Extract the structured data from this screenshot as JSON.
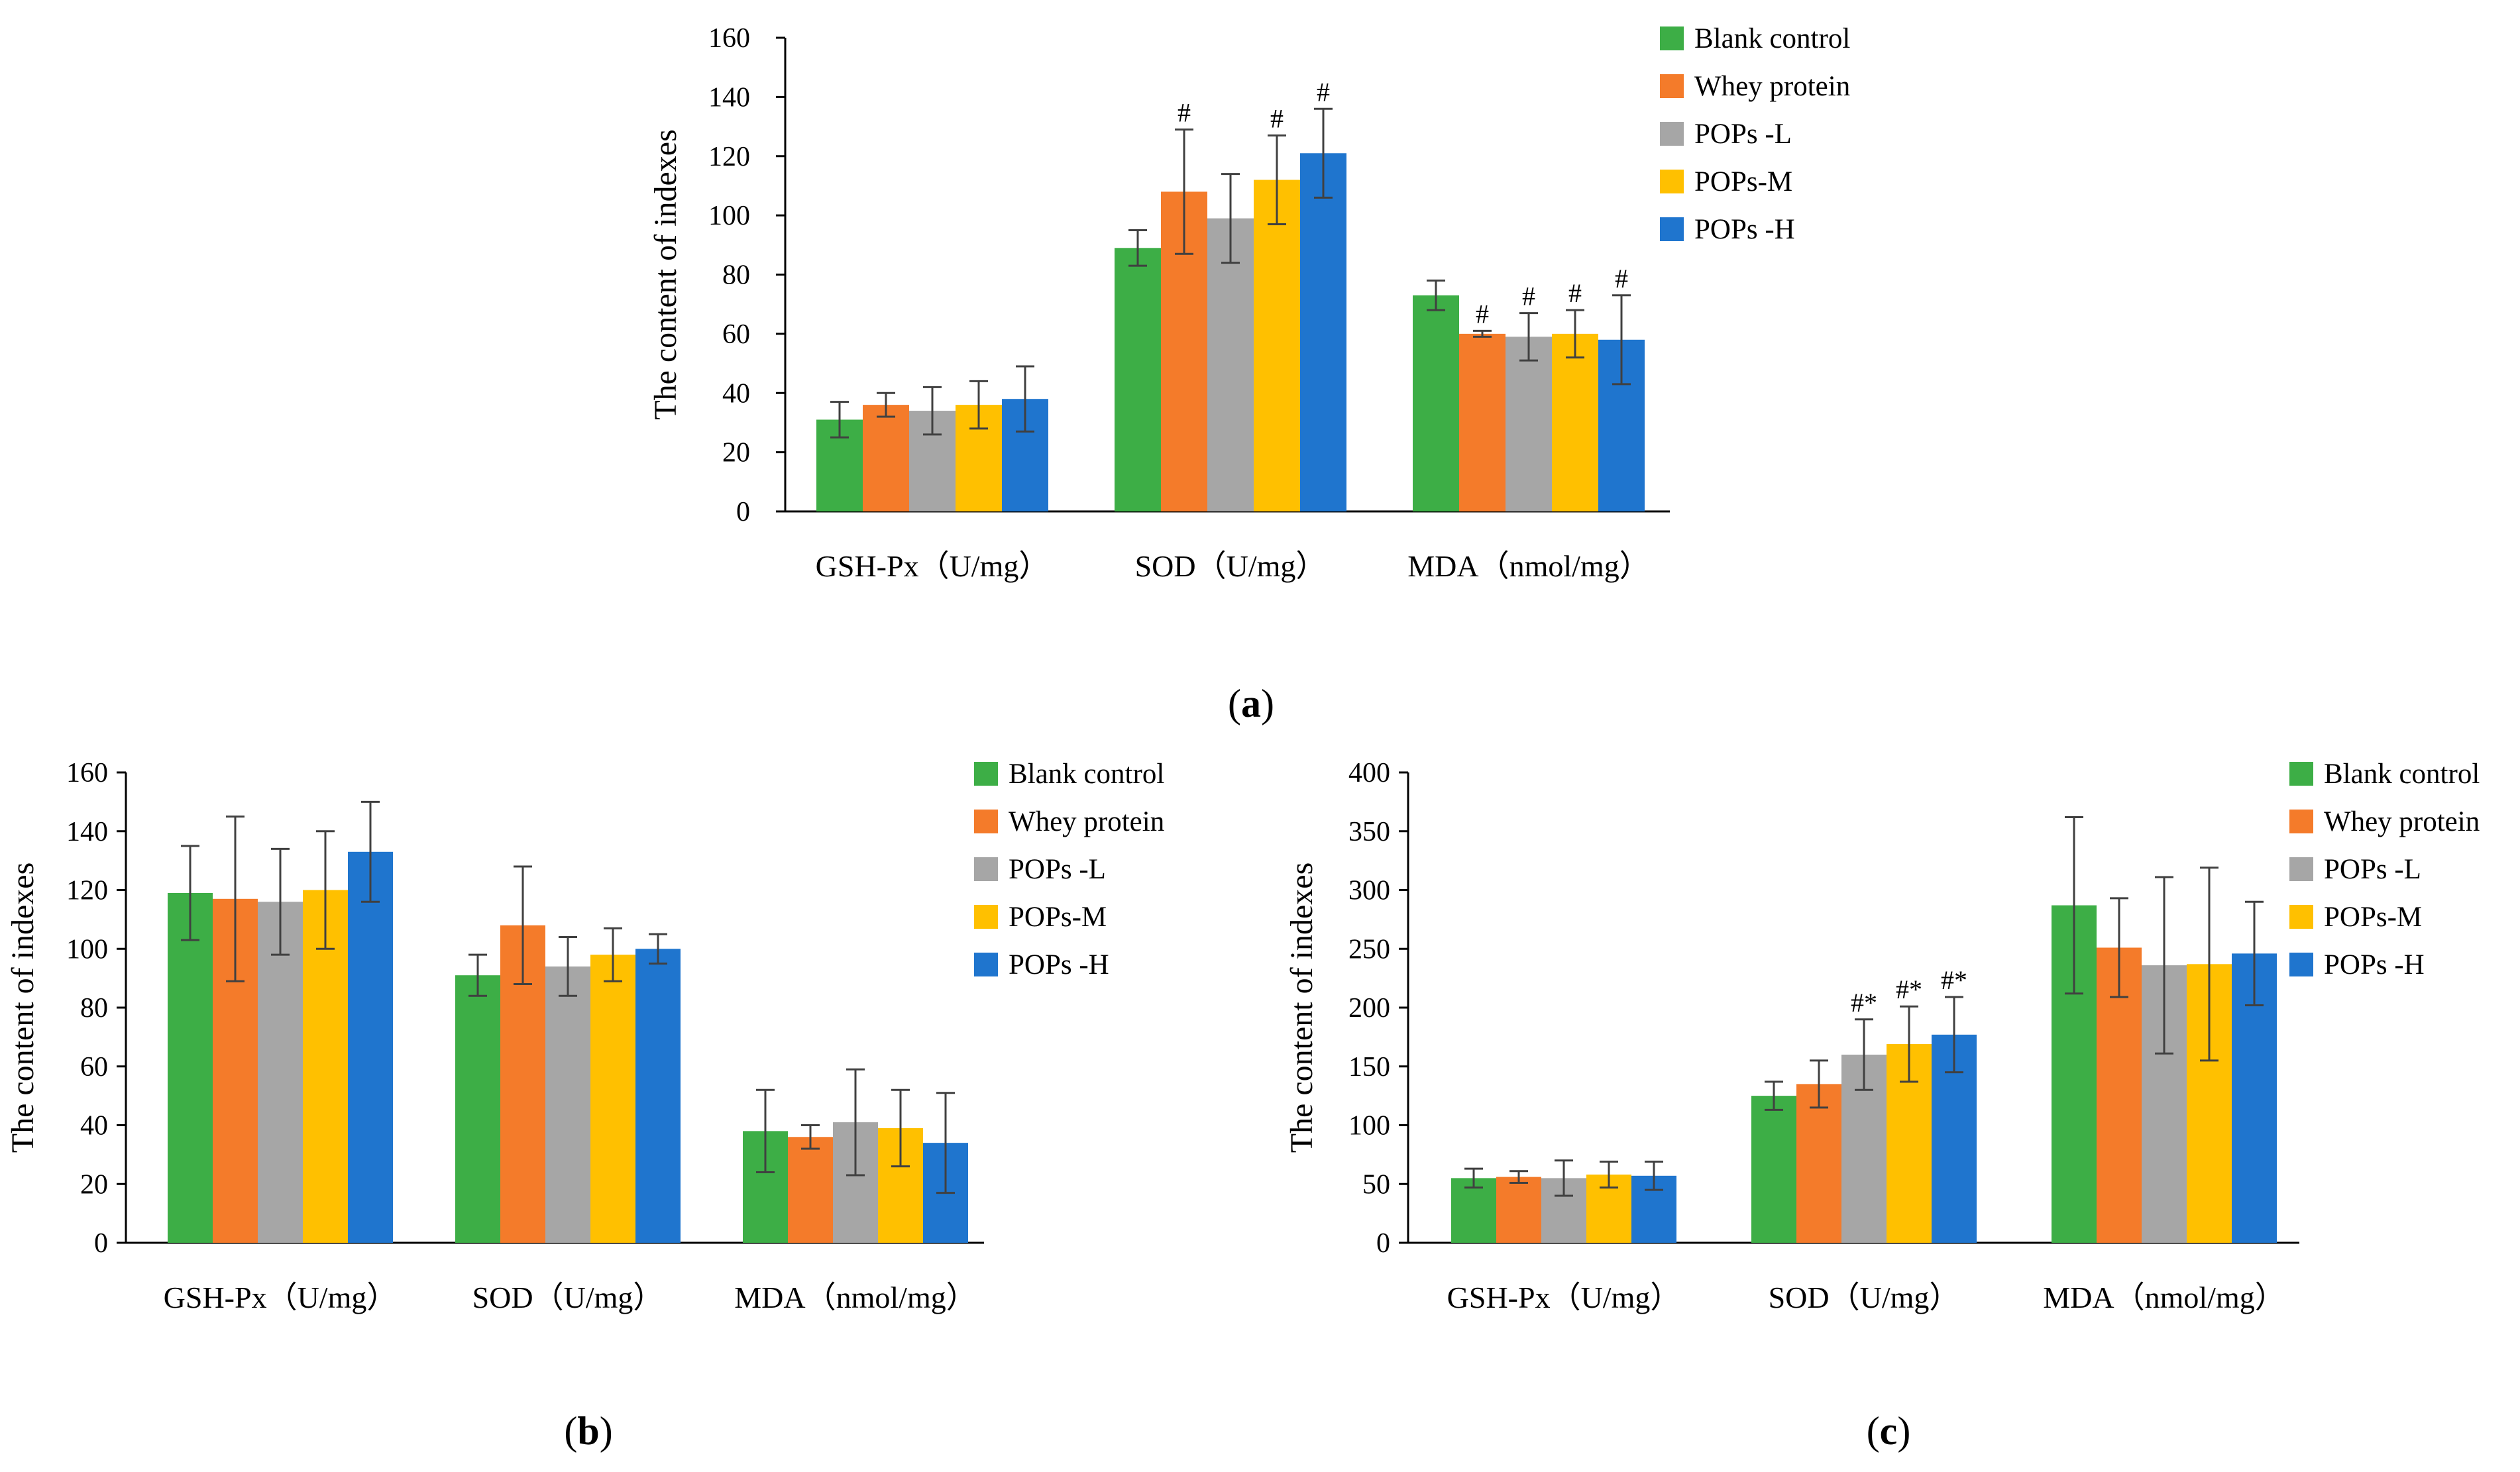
{
  "colors": {
    "series": [
      "#3DAE46",
      "#F47B2A",
      "#A6A6A6",
      "#FFC000",
      "#1F75CE"
    ],
    "axis": "#000000",
    "error_bar": "#404040"
  },
  "chart_data": [
    {
      "type": "bar",
      "panel": "a",
      "panel_label": {
        "open": "(",
        "letter": "a",
        "close": ")"
      },
      "ylabel": "The content of indexes",
      "xlabel": "",
      "ylim": [
        0,
        160
      ],
      "yticks": [
        0,
        20,
        40,
        60,
        80,
        100,
        120,
        140,
        160
      ],
      "categories": [
        "GSH-Px（U/mg）",
        "SOD（U/mg）",
        "MDA（nmol/mg）"
      ],
      "series": [
        {
          "name": "Blank control",
          "values": [
            31,
            89,
            73
          ],
          "errors": [
            6,
            6,
            5
          ],
          "sig": [
            "",
            "",
            ""
          ]
        },
        {
          "name": "Whey protein",
          "values": [
            36,
            108,
            60
          ],
          "errors": [
            4,
            21,
            1
          ],
          "sig": [
            "",
            "#",
            "#"
          ]
        },
        {
          "name": "POPs -L",
          "values": [
            34,
            99,
            59
          ],
          "errors": [
            8,
            15,
            8
          ],
          "sig": [
            "",
            "",
            "#"
          ]
        },
        {
          "name": "POPs-M",
          "values": [
            36,
            112,
            60
          ],
          "errors": [
            8,
            15,
            8
          ],
          "sig": [
            "",
            "#",
            "#"
          ]
        },
        {
          "name": "POPs -H",
          "values": [
            38,
            121,
            58
          ],
          "errors": [
            11,
            15,
            15
          ],
          "sig": [
            "",
            "#",
            "#"
          ]
        }
      ],
      "grid": false,
      "legend": "right"
    },
    {
      "type": "bar",
      "panel": "b",
      "panel_label": {
        "open": "(",
        "letter": "b",
        "close": ")"
      },
      "ylabel": "The content of indexes",
      "xlabel": "",
      "ylim": [
        0,
        160
      ],
      "yticks": [
        0,
        20,
        40,
        60,
        80,
        100,
        120,
        140,
        160
      ],
      "categories": [
        "GSH-Px（U/mg）",
        "SOD（U/mg）",
        "MDA（nmol/mg）"
      ],
      "series": [
        {
          "name": "Blank control",
          "values": [
            119,
            91,
            38
          ],
          "errors": [
            16,
            7,
            14
          ],
          "sig": [
            "",
            "",
            ""
          ]
        },
        {
          "name": "Whey protein",
          "values": [
            117,
            108,
            36
          ],
          "errors": [
            28,
            20,
            4
          ],
          "sig": [
            "",
            "",
            ""
          ]
        },
        {
          "name": "POPs -L",
          "values": [
            116,
            94,
            41
          ],
          "errors": [
            18,
            10,
            18
          ],
          "sig": [
            "",
            "",
            ""
          ]
        },
        {
          "name": "POPs-M",
          "values": [
            120,
            98,
            39
          ],
          "errors": [
            20,
            9,
            13
          ],
          "sig": [
            "",
            "",
            ""
          ]
        },
        {
          "name": "POPs -H",
          "values": [
            133,
            100,
            34
          ],
          "errors": [
            17,
            5,
            17
          ],
          "sig": [
            "",
            "",
            ""
          ]
        }
      ],
      "grid": false,
      "legend": "right"
    },
    {
      "type": "bar",
      "panel": "c",
      "panel_label": {
        "open": "(",
        "letter": "c",
        "close": ")"
      },
      "ylabel": "The content of indexes",
      "xlabel": "",
      "ylim": [
        0,
        400
      ],
      "yticks": [
        0,
        50,
        100,
        150,
        200,
        250,
        300,
        350,
        400
      ],
      "categories": [
        "GSH-Px（U/mg）",
        "SOD（U/mg）",
        "MDA（nmol/mg）"
      ],
      "series": [
        {
          "name": "Blank control",
          "values": [
            55,
            125,
            287
          ],
          "errors": [
            8,
            12,
            75
          ],
          "sig": [
            "",
            "",
            ""
          ]
        },
        {
          "name": "Whey protein",
          "values": [
            56,
            135,
            251
          ],
          "errors": [
            5,
            20,
            42
          ],
          "sig": [
            "",
            "",
            ""
          ]
        },
        {
          "name": "POPs -L",
          "values": [
            55,
            160,
            236
          ],
          "errors": [
            15,
            30,
            75
          ],
          "sig": [
            "",
            "#*",
            ""
          ]
        },
        {
          "name": "POPs-M",
          "values": [
            58,
            169,
            237
          ],
          "errors": [
            11,
            32,
            82
          ],
          "sig": [
            "",
            "#*",
            ""
          ]
        },
        {
          "name": "POPs -H",
          "values": [
            57,
            177,
            246
          ],
          "errors": [
            12,
            32,
            44
          ],
          "sig": [
            "",
            "#*",
            ""
          ]
        }
      ],
      "grid": false,
      "legend": "right"
    }
  ]
}
